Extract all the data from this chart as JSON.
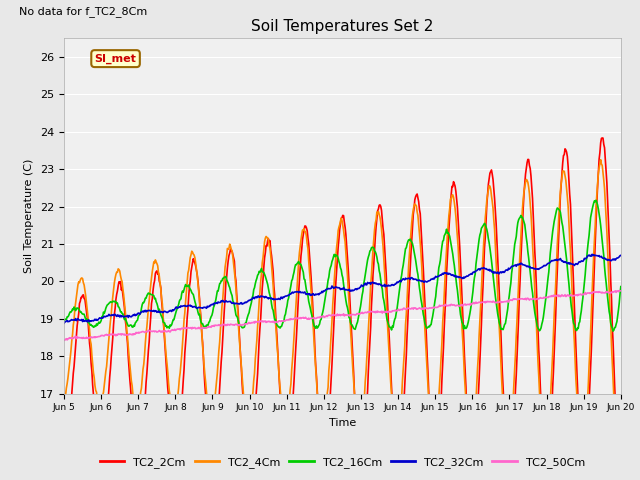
{
  "title": "Soil Temperatures Set 2",
  "annotation": "No data for f_TC2_8Cm",
  "xlabel": "Time",
  "ylabel": "Soil Temperature (C)",
  "ylim": [
    17.0,
    26.5
  ],
  "yticks": [
    17.0,
    18.0,
    19.0,
    20.0,
    21.0,
    22.0,
    23.0,
    24.0,
    25.0,
    26.0
  ],
  "background_color": "#e8e8e8",
  "plot_bg_color": "#f0f0f0",
  "legend_label": "SI_met",
  "legend_bg": "#ffffcc",
  "legend_border": "#996600",
  "colors": {
    "TC2_2Cm": "#ff0000",
    "TC2_4Cm": "#ff8800",
    "TC2_16Cm": "#00cc00",
    "TC2_32Cm": "#0000cc",
    "TC2_50Cm": "#ff66cc"
  },
  "linewidth": 1.2,
  "xtick_labels": [
    "Jun 5",
    "Jun 6",
    "Jun 7",
    "Jun 8",
    "Jun 9",
    "Jun 10",
    "Jun 11",
    "Jun 12",
    "Jun 13",
    "Jun 14",
    "Jun 15",
    "Jun 16",
    "Jun 17",
    "Jun 18",
    "Jun 19",
    "Jun 20"
  ]
}
